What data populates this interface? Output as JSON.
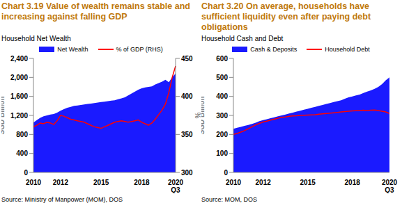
{
  "chart_data": [
    {
      "type": "area",
      "title": "Chart 3.19 Value of wealth remains stable and increasing against falling GDP",
      "subtitle": "Household Net Wealth",
      "source": "Source: Ministry of Manpower (MOM), DOS",
      "y_label": "SGD Billion",
      "y2_label": "%",
      "grid": false,
      "legend": "top",
      "categories": [
        "2010",
        null,
        null,
        null,
        null,
        null,
        null,
        null,
        "2012",
        null,
        null,
        null,
        null,
        null,
        null,
        null,
        null,
        null,
        null,
        null,
        "2015",
        null,
        null,
        null,
        null,
        null,
        null,
        null,
        null,
        null,
        null,
        null,
        "2018",
        null,
        null,
        null,
        null,
        null,
        null,
        null,
        null,
        null,
        "2020 Q3"
      ],
      "ylim": [
        0,
        2400
      ],
      "yticks": [
        0,
        400,
        800,
        {
          "value": 1200,
          "label": "1,200"
        },
        {
          "value": 1600,
          "label": "1,600"
        },
        {
          "value": 2000,
          "label": "2,000"
        },
        {
          "value": 2400,
          "label": "2,400"
        }
      ],
      "y2lim": [
        300,
        450
      ],
      "y2ticks": [
        300,
        350,
        400,
        450
      ],
      "series": [
        {
          "name": "Net Wealth",
          "type": "area",
          "color": "#1a1aff",
          "values": [
            1050,
            1100,
            1150,
            1180,
            1200,
            1220,
            1230,
            1260,
            1300,
            1330,
            1360,
            1380,
            1400,
            1410,
            1420,
            1430,
            1440,
            1450,
            1460,
            1470,
            1480,
            1490,
            1500,
            1510,
            1520,
            1540,
            1560,
            1580,
            1620,
            1660,
            1700,
            1740,
            1770,
            1790,
            1800,
            1810,
            1850,
            1880,
            1910,
            1950,
            1900,
            2000,
            2080
          ]
        },
        {
          "name": "% of GDP (RHS)",
          "type": "line",
          "axis": "y2",
          "color": "#ff0000",
          "values": [
            360,
            362,
            365,
            364,
            366,
            365,
            363,
            368,
            375,
            374,
            372,
            370,
            369,
            368,
            367,
            366,
            364,
            362,
            360,
            359,
            358,
            360,
            362,
            364,
            366,
            367,
            368,
            367,
            366,
            367,
            368,
            369,
            366,
            364,
            362,
            365,
            370,
            376,
            382,
            390,
            405,
            425,
            440
          ]
        }
      ]
    },
    {
      "type": "area",
      "title": "Chart 3.20 On average, households have sufficient liquidity even after paying debt obligations",
      "subtitle": "Household Cash and Debt",
      "source": "Source: MOM, DOS",
      "y_label": "SGD Billion",
      "grid": false,
      "legend": "top",
      "categories": [
        "2010",
        null,
        null,
        null,
        null,
        null,
        null,
        null,
        "2012",
        null,
        null,
        null,
        null,
        null,
        null,
        null,
        null,
        null,
        null,
        null,
        "2015",
        null,
        null,
        null,
        null,
        null,
        null,
        null,
        null,
        null,
        null,
        null,
        "2018",
        null,
        null,
        null,
        null,
        null,
        null,
        null,
        null,
        null,
        "2020 Q3"
      ],
      "ylim": [
        0,
        600
      ],
      "yticks": [
        0,
        100,
        200,
        300,
        400,
        500,
        600
      ],
      "series": [
        {
          "name": "Cash & Deposits",
          "type": "area",
          "color": "#1a1aff",
          "values": [
            230,
            235,
            240,
            245,
            250,
            255,
            262,
            270,
            275,
            280,
            285,
            290,
            295,
            300,
            305,
            310,
            315,
            320,
            325,
            330,
            335,
            340,
            345,
            350,
            355,
            360,
            365,
            370,
            375,
            380,
            388,
            395,
            400,
            405,
            410,
            418,
            425,
            432,
            440,
            450,
            465,
            485,
            500
          ]
        },
        {
          "name": "Household Debt",
          "type": "line",
          "color": "#ff0000",
          "values": [
            200,
            205,
            212,
            220,
            230,
            240,
            250,
            258,
            265,
            270,
            275,
            280,
            285,
            290,
            292,
            295,
            297,
            298,
            300,
            301,
            302,
            303,
            304,
            306,
            308,
            310,
            312,
            314,
            316,
            318,
            320,
            322,
            324,
            325,
            326,
            327,
            326,
            327,
            328,
            326,
            322,
            318,
            310
          ]
        }
      ]
    }
  ]
}
